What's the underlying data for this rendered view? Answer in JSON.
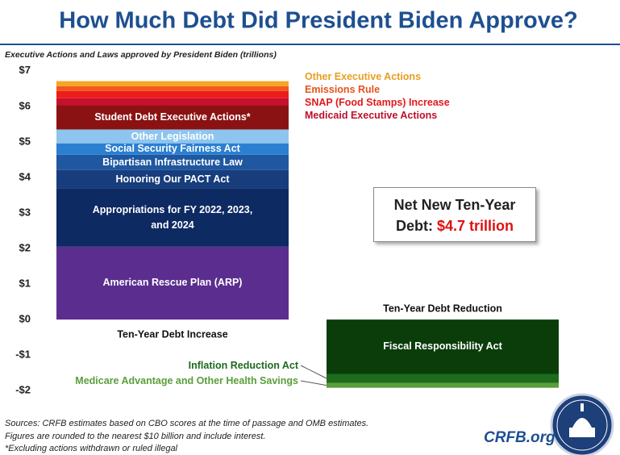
{
  "chart_data": {
    "type": "bar",
    "stacked": true,
    "title": "How Much Debt Did President Biden Approve?",
    "subtitle": "Executive Actions and Laws approved by President Biden (trillions)",
    "categories": [
      "Ten-Year Debt Increase",
      "Ten-Year Debt Reduction"
    ],
    "series": [
      {
        "name": "American Rescue Plan (ARP)",
        "color": "#5b2d8e",
        "values": [
          2.05,
          null
        ]
      },
      {
        "name": "Appropriations for FY 2022, 2023, and 2024",
        "color": "#0e2a63",
        "values": [
          1.64,
          null
        ]
      },
      {
        "name": "Honoring Our PACT Act",
        "color": "#173d7c",
        "values": [
          0.52,
          null
        ]
      },
      {
        "name": "Bipartisan Infrastructure Law",
        "color": "#1f58a0",
        "values": [
          0.43,
          null
        ]
      },
      {
        "name": "Social Security Fairness Act",
        "color": "#2a7fd1",
        "values": [
          0.32,
          null
        ]
      },
      {
        "name": "Other Legislation",
        "color": "#8ec5ee",
        "values": [
          0.39,
          null
        ]
      },
      {
        "name": "Student Debt Executive Actions*",
        "color": "#8b1212",
        "values": [
          0.68,
          null
        ]
      },
      {
        "name": "Medicaid Executive Actions",
        "color": "#c8102e",
        "values": [
          0.2,
          null
        ]
      },
      {
        "name": "SNAP (Food Stamps) Increase",
        "color": "#ec1c1c",
        "values": [
          0.2,
          null
        ]
      },
      {
        "name": "Emissions Rule",
        "color": "#f2581e",
        "values": [
          0.14,
          null
        ]
      },
      {
        "name": "Other Executive Actions",
        "color": "#f5a623",
        "values": [
          0.14,
          null
        ]
      },
      {
        "name": "Fiscal Responsibility Act",
        "color": "#0b3d0b",
        "values": [
          null,
          -1.53
        ]
      },
      {
        "name": "Inflation Reduction Act",
        "color": "#1e6b1e",
        "values": [
          null,
          -0.25
        ]
      },
      {
        "name": "Medicare Advantage and Other Health Savings",
        "color": "#5a9e3a",
        "values": [
          null,
          -0.14
        ]
      }
    ],
    "ylim": [
      -2.2,
      7.2
    ],
    "yticks": [
      {
        "value": 7,
        "label": "$7"
      },
      {
        "value": 6,
        "label": "$6"
      },
      {
        "value": 5,
        "label": "$5"
      },
      {
        "value": 4,
        "label": "$4"
      },
      {
        "value": 3,
        "label": "$3"
      },
      {
        "value": 2,
        "label": "$2"
      },
      {
        "value": 1,
        "label": "$1"
      },
      {
        "value": 0,
        "label": "$0"
      },
      {
        "value": -1,
        "label": "-$1"
      },
      {
        "value": -2,
        "label": "-$2"
      }
    ],
    "grid": false,
    "annotation": {
      "line1": "Net New Ten-Year",
      "line2": "Debt:",
      "highlight": "$4.7 trillion"
    },
    "footnotes": [
      "Sources: CRFB estimates based on CBO scores at the time of passage and OMB estimates.",
      "Figures are rounded to the nearest $10 billion and include interest.",
      "*Excluding actions withdrawn or ruled illegal"
    ],
    "logo_text": "CRFB.org"
  }
}
